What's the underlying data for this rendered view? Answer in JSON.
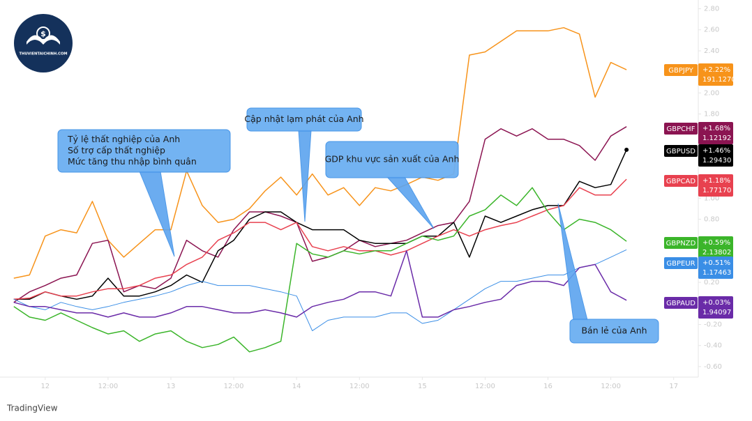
{
  "logo": "THUVIENTAICHINH.COM",
  "watermark": "TradingView",
  "chart_data": {
    "type": "line",
    "x": [
      -6,
      -3,
      0,
      3,
      6,
      9,
      12,
      15,
      18,
      21,
      24,
      27,
      30,
      33,
      36,
      39,
      42,
      45,
      48,
      51,
      54,
      57,
      60,
      63,
      66,
      69,
      72,
      75,
      78,
      81,
      84,
      87,
      90,
      93,
      96,
      99,
      102,
      105,
      108,
      111
    ],
    "xlim": [
      -7.3,
      124.7
    ],
    "xticks": [
      {
        "value": 0,
        "label": "12"
      },
      {
        "value": 12,
        "label": "12:00"
      },
      {
        "value": 24,
        "label": "13"
      },
      {
        "value": 36,
        "label": "12:00"
      },
      {
        "value": 48,
        "label": "14"
      },
      {
        "value": 60,
        "label": "12:00"
      },
      {
        "value": 72,
        "label": "15"
      },
      {
        "value": 84,
        "label": "12:00"
      },
      {
        "value": 96,
        "label": "16"
      },
      {
        "value": 108,
        "label": "12:00"
      },
      {
        "value": 120,
        "label": "17"
      }
    ],
    "ylim": [
      -0.7,
      2.85
    ],
    "yticks": [
      {
        "value": 2.8,
        "label": "2.80"
      },
      {
        "value": 2.6,
        "label": "2.60"
      },
      {
        "value": 2.4,
        "label": "2.40"
      },
      {
        "value": 2.2,
        "label": "2.20"
      },
      {
        "value": 2,
        "label": "2.00"
      },
      {
        "value": 1.8,
        "label": "1.80"
      },
      {
        "value": 1.6,
        "label": "1.60"
      },
      {
        "value": 1.4,
        "label": "1.40"
      },
      {
        "value": 1.2,
        "label": "1.20"
      },
      {
        "value": 1,
        "label": "1.00"
      },
      {
        "value": 0.8,
        "label": "0.80"
      },
      {
        "value": 0.6,
        "label": "0.60"
      },
      {
        "value": 0.4,
        "label": "0.40"
      },
      {
        "value": 0.2,
        "label": "0.20"
      },
      {
        "value": 0,
        "label": "0.00"
      },
      {
        "value": -0.2,
        "label": "-0.20"
      },
      {
        "value": -0.4,
        "label": "-0.40"
      },
      {
        "value": -0.6,
        "label": "-0.60"
      }
    ],
    "series": [
      {
        "name": "GBPJPY",
        "color": "#f7931a",
        "change": "+2.22%",
        "price": "191.12700",
        "values": [
          0.24,
          0.27,
          0.64,
          0.7,
          0.67,
          0.97,
          0.6,
          0.44,
          0.57,
          0.7,
          0.7,
          1.26,
          0.93,
          0.77,
          0.8,
          0.9,
          1.07,
          1.2,
          1.03,
          1.23,
          1.03,
          1.1,
          0.93,
          1.1,
          1.07,
          1.13,
          1.2,
          1.17,
          1.23,
          2.36,
          2.39,
          2.49,
          2.59,
          2.59,
          2.59,
          2.62,
          2.56,
          1.96,
          2.29,
          2.22
        ]
      },
      {
        "name": "GBPCHF",
        "color": "#8b1451",
        "change": "+1.68%",
        "price": "1.12192",
        "values": [
          0.01,
          0.11,
          0.17,
          0.24,
          0.27,
          0.57,
          0.6,
          0.11,
          0.17,
          0.14,
          0.24,
          0.6,
          0.5,
          0.44,
          0.7,
          0.87,
          0.87,
          0.83,
          0.77,
          0.4,
          0.44,
          0.5,
          0.6,
          0.54,
          0.57,
          0.6,
          0.67,
          0.74,
          0.77,
          0.97,
          1.56,
          1.66,
          1.59,
          1.66,
          1.56,
          1.56,
          1.5,
          1.36,
          1.59,
          1.68
        ]
      },
      {
        "name": "GBPUSD",
        "color": "#000000",
        "change": "+1.46%",
        "price": "1.29430",
        "values": [
          0.04,
          0.04,
          0.11,
          0.07,
          0.04,
          0.07,
          0.24,
          0.07,
          0.07,
          0.11,
          0.17,
          0.27,
          0.2,
          0.5,
          0.6,
          0.8,
          0.87,
          0.87,
          0.77,
          0.7,
          0.7,
          0.7,
          0.6,
          0.57,
          0.57,
          0.57,
          0.64,
          0.64,
          0.77,
          0.44,
          0.83,
          0.77,
          0.83,
          0.89,
          0.93,
          0.93,
          1.16,
          1.1,
          1.13,
          1.46
        ]
      },
      {
        "name": "GBPCAD",
        "color": "#e8414f",
        "change": "+1.18%",
        "price": "1.77170",
        "values": [
          0.04,
          0.05,
          0.11,
          0.07,
          0.07,
          0.11,
          0.14,
          0.14,
          0.17,
          0.24,
          0.27,
          0.37,
          0.44,
          0.6,
          0.67,
          0.77,
          0.77,
          0.7,
          0.77,
          0.54,
          0.5,
          0.54,
          0.5,
          0.5,
          0.46,
          0.5,
          0.57,
          0.64,
          0.7,
          0.64,
          0.7,
          0.74,
          0.77,
          0.83,
          0.89,
          0.93,
          1.1,
          1.03,
          1.03,
          1.18
        ]
      },
      {
        "name": "GBPNZD",
        "color": "#3bb52a",
        "change": "+0.59%",
        "price": "2.13802",
        "values": [
          -0.03,
          -0.13,
          -0.16,
          -0.09,
          -0.16,
          -0.23,
          -0.29,
          -0.26,
          -0.36,
          -0.29,
          -0.26,
          -0.36,
          -0.42,
          -0.39,
          -0.32,
          -0.46,
          -0.42,
          -0.36,
          0.57,
          0.47,
          0.44,
          0.5,
          0.47,
          0.5,
          0.5,
          0.57,
          0.64,
          0.6,
          0.64,
          0.83,
          0.89,
          1.03,
          0.93,
          1.1,
          0.87,
          0.7,
          0.8,
          0.77,
          0.7,
          0.59
        ]
      },
      {
        "name": "GBPEUR",
        "color": "#3a8ee6",
        "change": "+0.51%",
        "price": "1.17463",
        "values": [
          0.04,
          -0.03,
          -0.06,
          0.01,
          -0.03,
          -0.06,
          -0.03,
          0.01,
          0.04,
          0.07,
          0.11,
          0.17,
          0.21,
          0.17,
          0.17,
          0.17,
          0.14,
          0.11,
          0.07,
          -0.26,
          -0.16,
          -0.13,
          -0.13,
          -0.13,
          -0.09,
          -0.09,
          -0.19,
          -0.16,
          -0.06,
          0.04,
          0.14,
          0.21,
          0.21,
          0.24,
          0.27,
          0.27,
          0.34,
          0.37,
          0.44,
          0.51
        ]
      },
      {
        "name": "GBPAUD",
        "color": "#6a2ba8",
        "change": "+0.03%",
        "price": "1.94097",
        "values": [
          0.01,
          -0.03,
          -0.03,
          -0.06,
          -0.09,
          -0.09,
          -0.13,
          -0.09,
          -0.13,
          -0.13,
          -0.09,
          -0.03,
          -0.03,
          -0.06,
          -0.09,
          -0.09,
          -0.06,
          -0.09,
          -0.13,
          -0.03,
          0.01,
          0.04,
          0.11,
          0.11,
          0.07,
          0.5,
          -0.13,
          -0.13,
          -0.06,
          -0.03,
          0.01,
          0.04,
          0.17,
          0.21,
          0.21,
          0.17,
          0.34,
          0.37,
          0.11,
          0.03
        ]
      }
    ],
    "annotations": [
      {
        "lines": [
          "Tỷ lệ thất nghiệp của Anh",
          "Số trợ cấp thất nghiệp",
          "Mức tăng thu nhập bình quân"
        ]
      },
      {
        "lines": [
          "Cập nhật lạm phát của Anh"
        ]
      },
      {
        "lines": [
          "GDP khu vực sản xuất của Anh"
        ]
      },
      {
        "lines": [
          "Bán lẻ của Anh"
        ]
      }
    ]
  }
}
